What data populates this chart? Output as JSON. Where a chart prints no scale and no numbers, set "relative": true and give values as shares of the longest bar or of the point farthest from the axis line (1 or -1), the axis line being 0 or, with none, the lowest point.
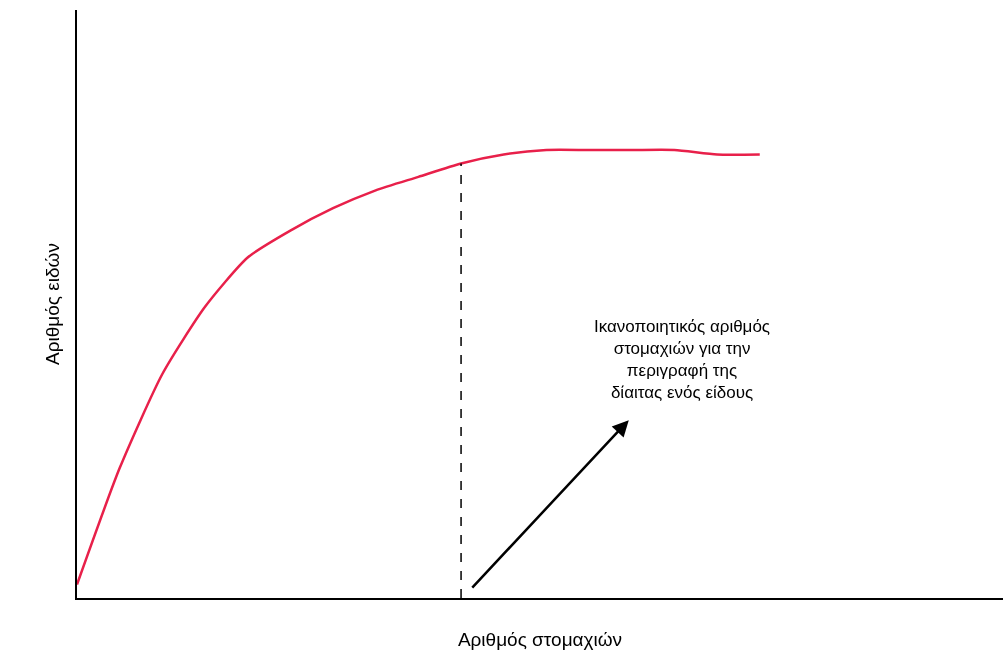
{
  "chart_data": {
    "type": "line",
    "relative": true,
    "xlabel": "Αριθμός στομαχιών",
    "ylabel": "Αριθμός ειδών",
    "categories": [
      null,
      null,
      null,
      null,
      null,
      null,
      null,
      null,
      null,
      null,
      null,
      null,
      null,
      null,
      null,
      null,
      null,
      null,
      null,
      null,
      null,
      null
    ],
    "series": [
      {
        "color": "#e8204a",
        "values": [
          0.03,
          0.29,
          0.5,
          0.65,
          0.76,
          0.82,
          0.87,
          0.91,
          0.94,
          0.97,
          0.99,
          1.0,
          1.0,
          1.0,
          1.0,
          0.99,
          0.99,
          null,
          null,
          null,
          null,
          null
        ]
      }
    ],
    "annotations": [
      "Ικανοποιητικός αριθμός\nστομαχιών για την\nπεριγραφή της\nδίαιτας ενός είδους"
    ],
    "marker": "none",
    "line_style": "solid"
  }
}
